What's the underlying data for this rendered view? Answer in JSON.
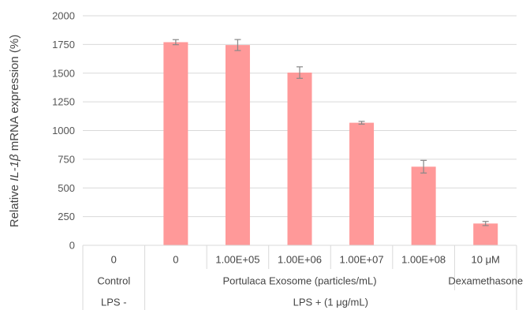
{
  "chart_data": {
    "type": "bar",
    "ylabel": {
      "prefix": "Relative ",
      "italic": "IL-1β",
      "suffix": " mRNA expression (%)"
    },
    "ylim": [
      0,
      2000
    ],
    "yticks": [
      "0",
      "250",
      "500",
      "750",
      "1000",
      "1250",
      "1500",
      "1750",
      "2000"
    ],
    "grid": true,
    "bar_color": "#ff9999",
    "error_color": "#888888",
    "categories": [
      "0",
      "0",
      "1.00E+05",
      "1.00E+06",
      "1.00E+07",
      "1.00E+08",
      "10 μM"
    ],
    "values": [
      0,
      1770,
      1745,
      1505,
      1068,
      685,
      190
    ],
    "errors": [
      0,
      22,
      48,
      50,
      12,
      55,
      18
    ],
    "group_labels": [
      {
        "label": "Control",
        "from": 0,
        "to": 0
      },
      {
        "label": "Portulaca Exosome (particles/mL)",
        "from": 1,
        "to": 5
      },
      {
        "label": "Dexamethasone",
        "from": 6,
        "to": 6
      }
    ],
    "condition_labels": [
      {
        "label": "LPS -",
        "from": 0,
        "to": 0
      },
      {
        "label": "LPS + (1 μg/mL)",
        "from": 1,
        "to": 6
      }
    ]
  }
}
